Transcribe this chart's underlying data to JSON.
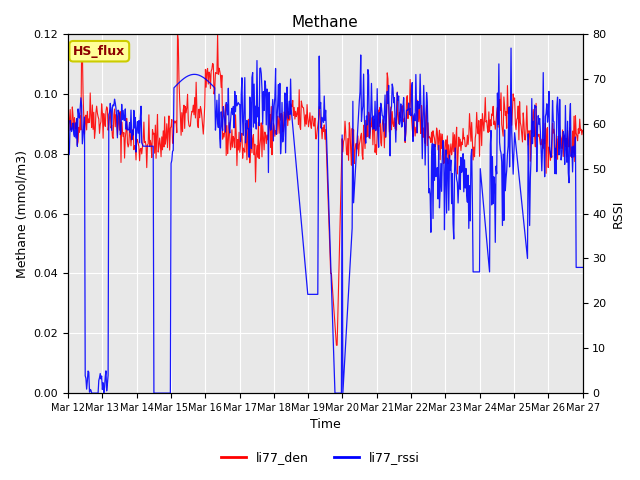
{
  "title": "Methane",
  "xlabel": "Time",
  "ylabel_left": "Methane (mmol/m3)",
  "ylabel_right": "RSSI",
  "left_ylim": [
    0.0,
    0.12
  ],
  "right_ylim": [
    0,
    80
  ],
  "left_yticks": [
    0.0,
    0.02,
    0.04,
    0.06,
    0.08,
    0.1,
    0.12
  ],
  "right_yticks": [
    0,
    10,
    20,
    30,
    40,
    50,
    60,
    70,
    80
  ],
  "xtick_labels": [
    "Mar 12",
    "Mar 13",
    "Mar 14",
    "Mar 15",
    "Mar 16",
    "Mar 17",
    "Mar 18",
    "Mar 19",
    "Mar 20",
    "Mar 21",
    "Mar 22",
    "Mar 23",
    "Mar 24",
    "Mar 25",
    "Mar 26",
    "Mar 27"
  ],
  "legend_labels": [
    "li77_den",
    "li77_rssi"
  ],
  "legend_colors": [
    "red",
    "blue"
  ],
  "line_colors": [
    "red",
    "blue"
  ],
  "background_color": "#e8e8e8",
  "annotation_text": "HS_flux",
  "annotation_bg": "#ffff99",
  "annotation_border": "#cccc00"
}
